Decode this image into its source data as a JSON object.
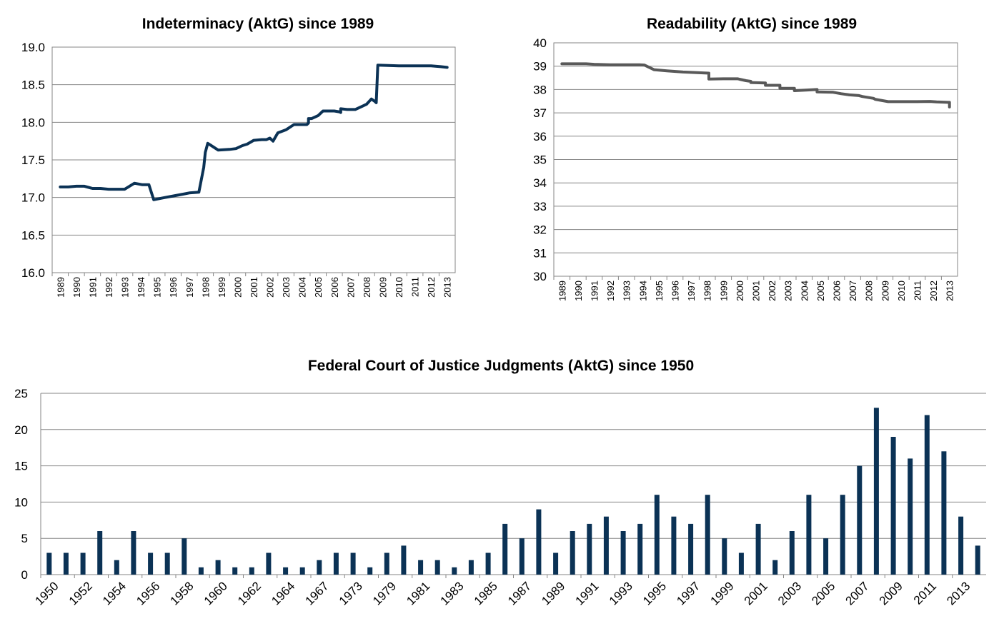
{
  "chart_data": [
    {
      "type": "line",
      "title": "Indeterminacy (AktG) since 1989",
      "xlabel": "",
      "ylabel": "",
      "ylim": [
        16.0,
        19.0
      ],
      "yticks": [
        "16.0",
        "16.5",
        "17.0",
        "17.5",
        "18.0",
        "18.5",
        "19.0"
      ],
      "categories": [
        "1989",
        "1990",
        "1991",
        "1992",
        "1993",
        "1994",
        "1995",
        "1996",
        "1997",
        "1998",
        "1999",
        "2000",
        "2001",
        "2002",
        "2003",
        "2004",
        "2005",
        "2006",
        "2007",
        "2008",
        "2009",
        "2010",
        "2011",
        "2012",
        "2013"
      ],
      "grid": true,
      "legend": "none",
      "color": "#0b3255",
      "x": [
        1989.0,
        1989.5,
        1990.0,
        1990.5,
        1991.0,
        1991.5,
        1992.0,
        1993.0,
        1993.6,
        1994.1,
        1994.5,
        1994.8,
        1995.5,
        1996.0,
        1996.5,
        1997.0,
        1997.6,
        1997.9,
        1998.0,
        1998.15,
        1998.3,
        1998.8,
        1999.5,
        1999.9,
        2000.3,
        2000.6,
        2001.0,
        2001.5,
        2001.8,
        2002.0,
        2002.2,
        2002.5,
        2003.0,
        2003.5,
        2004.0,
        2004.3,
        2004.4,
        2004.4,
        2004.6,
        2005.0,
        2005.3,
        2005.7,
        2006.0,
        2006.3,
        2006.4,
        2006.4,
        2006.8,
        2007.3,
        2007.8,
        2008.0,
        2008.3,
        2008.5,
        2008.6,
        2008.7,
        2010.0,
        2011.0,
        2012.0,
        2012.6,
        2013.0
      ],
      "y": [
        17.14,
        17.14,
        17.15,
        17.15,
        17.12,
        17.12,
        17.11,
        17.11,
        17.19,
        17.17,
        17.17,
        16.97,
        17.0,
        17.02,
        17.04,
        17.06,
        17.07,
        17.4,
        17.6,
        17.72,
        17.7,
        17.63,
        17.64,
        17.65,
        17.69,
        17.71,
        17.76,
        17.77,
        17.77,
        17.79,
        17.75,
        17.86,
        17.9,
        17.97,
        17.97,
        17.97,
        17.99,
        18.05,
        18.05,
        18.09,
        18.15,
        18.15,
        18.15,
        18.14,
        18.13,
        18.18,
        18.17,
        18.17,
        18.22,
        18.24,
        18.31,
        18.28,
        18.26,
        18.76,
        18.75,
        18.75,
        18.75,
        18.74,
        18.73
      ]
    },
    {
      "type": "line",
      "title": "Readability (AktG) since 1989",
      "xlabel": "",
      "ylabel": "",
      "ylim": [
        30,
        40
      ],
      "yticks": [
        "30",
        "31",
        "32",
        "33",
        "34",
        "35",
        "36",
        "37",
        "38",
        "39",
        "40"
      ],
      "categories": [
        "1989",
        "1990",
        "1991",
        "1992",
        "1993",
        "1994",
        "1995",
        "1996",
        "1997",
        "1998",
        "1999",
        "2000",
        "2001",
        "2002",
        "2003",
        "2004",
        "2005",
        "2006",
        "2007",
        "2008",
        "2009",
        "2010",
        "2011",
        "2012",
        "2013"
      ],
      "grid": true,
      "legend": "none",
      "color": "#595959",
      "x": [
        1989.0,
        1990.0,
        1990.5,
        1991.0,
        1992.0,
        1993.0,
        1993.8,
        1994.1,
        1994.7,
        1995.5,
        1996.5,
        1997.5,
        1998.1,
        1998.1,
        1999.0,
        1999.9,
        2000.0,
        2000.4,
        2000.7,
        2000.7,
        2001.6,
        2001.6,
        2002.5,
        2002.5,
        2003.4,
        2003.4,
        2004.2,
        2004.2,
        2004.8,
        2004.8,
        2005.8,
        2006.3,
        2006.8,
        2007.4,
        2007.6,
        2008.3,
        2008.4,
        2009.2,
        2010.0,
        2011.0,
        2011.8,
        2012.2,
        2012.9,
        2013.0,
        2013.0
      ],
      "y": [
        39.1,
        39.1,
        39.1,
        39.08,
        39.06,
        39.06,
        39.06,
        39.05,
        38.85,
        38.8,
        38.75,
        38.72,
        38.7,
        38.45,
        38.46,
        38.46,
        38.44,
        38.38,
        38.35,
        38.3,
        38.28,
        38.18,
        38.18,
        38.05,
        38.05,
        37.95,
        37.98,
        37.98,
        38.0,
        37.9,
        37.88,
        37.82,
        37.77,
        37.74,
        37.7,
        37.62,
        37.58,
        37.48,
        37.48,
        37.48,
        37.49,
        37.47,
        37.45,
        37.45,
        37.25
      ]
    },
    {
      "type": "bar",
      "title": "Federal Court of Justice Judgments (AktG) since 1950",
      "xlabel": "",
      "ylabel": "",
      "ylim": [
        0,
        25
      ],
      "yticks": [
        "0",
        "5",
        "10",
        "15",
        "20",
        "25"
      ],
      "tick_labels": [
        "1950",
        "1952",
        "1954",
        "1956",
        "1958",
        "1960",
        "1962",
        "1964",
        "1967",
        "1973",
        "1979",
        "1981",
        "1983",
        "1985",
        "1987",
        "1989",
        "1991",
        "1993",
        "1995",
        "1997",
        "1999",
        "2001",
        "2003",
        "2005",
        "2007",
        "2009",
        "2011",
        "2013"
      ],
      "grid": true,
      "legend": "none",
      "color": "#0b3255",
      "values": [
        3,
        3,
        3,
        6,
        2,
        6,
        3,
        3,
        5,
        1,
        2,
        1,
        1,
        3,
        1,
        1,
        2,
        3,
        3,
        1,
        3,
        4,
        2,
        2,
        1,
        2,
        3,
        7,
        5,
        9,
        3,
        6,
        7,
        8,
        6,
        7,
        11,
        8,
        7,
        11,
        5,
        3,
        7,
        2,
        6,
        11,
        5,
        11,
        15,
        23,
        19,
        16,
        22,
        17,
        8,
        4
      ]
    }
  ]
}
